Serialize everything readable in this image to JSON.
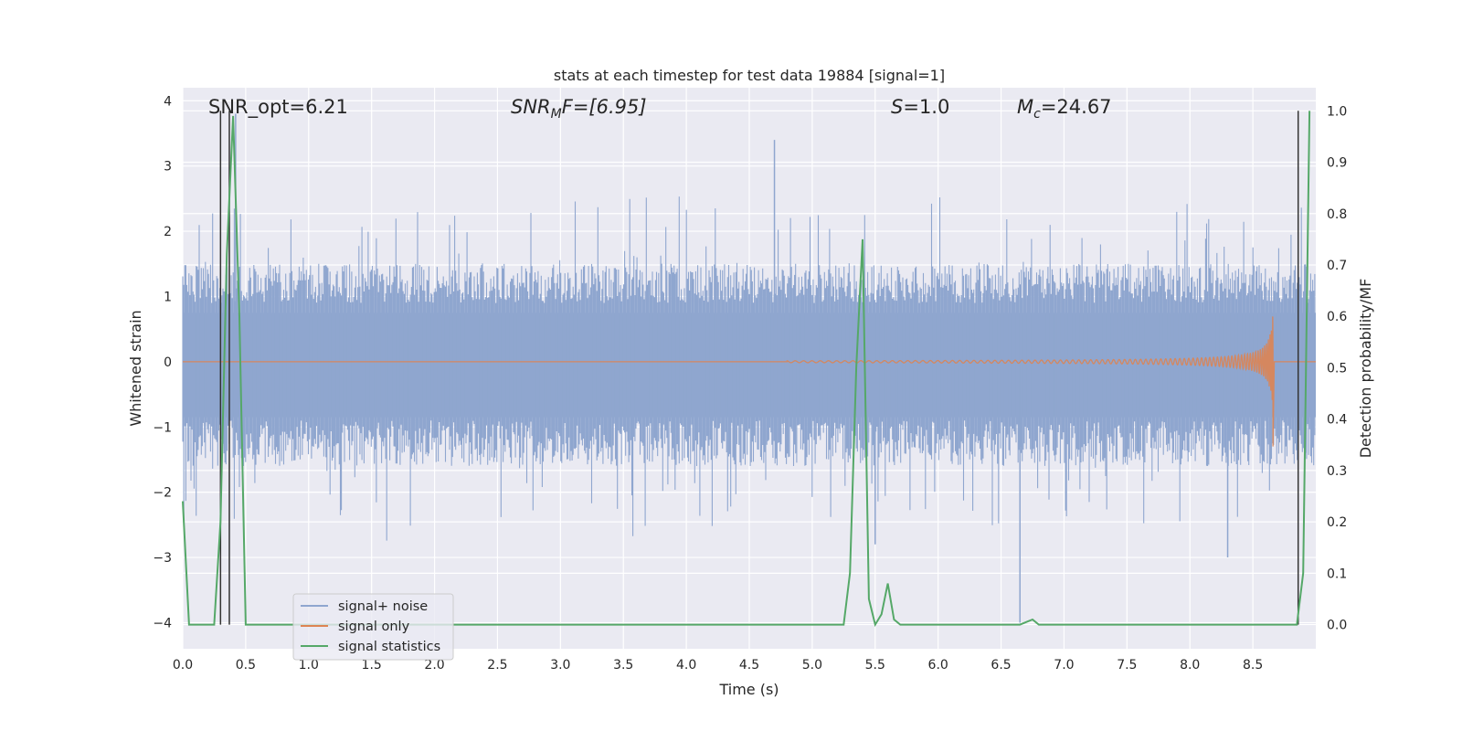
{
  "chart_data": {
    "type": "line",
    "title": "stats at each timestep for test data 19884 [signal=1]",
    "xlabel": "Time (s)",
    "ylabel_left": "Whitened strain",
    "ylabel_right": "Detection probability/MF",
    "xlim": [
      0.0,
      9.0
    ],
    "ylim_left": [
      -4.4,
      4.2
    ],
    "ylim_right": [
      -0.047,
      1.045
    ],
    "x_ticks": [
      "0.0",
      "0.5",
      "1.0",
      "1.5",
      "2.0",
      "2.5",
      "3.0",
      "3.5",
      "4.0",
      "4.5",
      "5.0",
      "5.5",
      "6.0",
      "6.5",
      "7.0",
      "7.5",
      "8.0",
      "8.5"
    ],
    "y_ticks_left": [
      "4",
      "3",
      "2",
      "1",
      "0",
      "−1",
      "−2",
      "−3",
      "−4"
    ],
    "y_ticks_right": [
      "1.0",
      "0.9",
      "0.8",
      "0.7",
      "0.6",
      "0.5",
      "0.4",
      "0.3",
      "0.2",
      "0.1",
      "0.0"
    ],
    "grid": true,
    "legend_position": "lower-left",
    "annotations": {
      "snr_opt": "SNR_opt=6.21",
      "snr_mf_base": "SNR",
      "snr_mf_sub": "M",
      "snr_mf_rest": "F=[6.95]",
      "s_sym": "S",
      "s_val": "=1.0",
      "mc_sym": "M",
      "mc_sub": "c",
      "mc_val": "=24.67"
    },
    "series": [
      {
        "name": "signal+ noise",
        "color": "#8fa6cf",
        "description_note": "dense whitened-strain noise; amplitude envelope approx ±1.5 with spikes to ±3",
        "envelope_upper": 1.5,
        "envelope_lower": -1.6,
        "notable_peaks": [
          [
            0.42,
            3.8
          ],
          [
            4.7,
            3.4
          ],
          [
            6.65,
            -4.0
          ],
          [
            5.5,
            -2.8
          ],
          [
            8.3,
            -3.0
          ]
        ]
      },
      {
        "name": "signal only",
        "color": "#dd8452",
        "chirp_start_time": 4.8,
        "chirp_end_time": 8.66,
        "peak_amplitude_plus": 1.1,
        "peak_amplitude_minus": -1.3
      },
      {
        "name": "signal statistics",
        "color": "#55a868",
        "axis": "right",
        "x": [
          0.0,
          0.05,
          0.25,
          0.3,
          0.35,
          0.4,
          0.45,
          0.5,
          5.25,
          5.3,
          5.35,
          5.4,
          5.45,
          5.5,
          5.55,
          5.6,
          5.65,
          5.7,
          5.75,
          5.85,
          6.0,
          6.2,
          6.65,
          6.75,
          6.8,
          8.85,
          8.9,
          8.95
        ],
        "values": [
          0.24,
          0.0,
          0.0,
          0.2,
          0.72,
          0.99,
          0.6,
          0.0,
          0.0,
          0.1,
          0.5,
          0.75,
          0.05,
          0.0,
          0.02,
          0.08,
          0.01,
          0.0,
          0.0,
          0.0,
          0.0,
          0.0,
          0.0,
          0.01,
          0.0,
          0.0,
          0.1,
          1.0
        ]
      }
    ],
    "vertical_lines": [
      0.3,
      0.37,
      8.86
    ],
    "vertical_line_color": "#333333"
  },
  "legend": {
    "items": [
      "signal+ noise",
      "signal only",
      "signal statistics"
    ]
  }
}
